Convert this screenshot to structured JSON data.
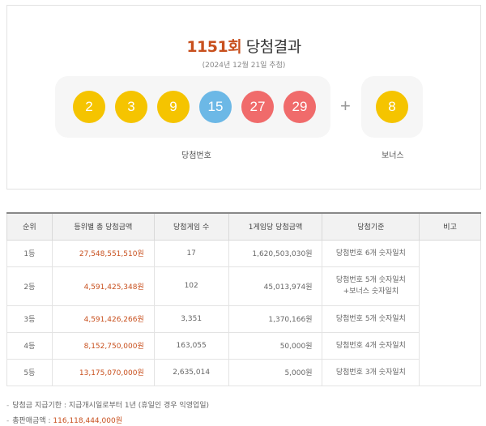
{
  "header": {
    "round": "1151회",
    "title_suffix": "당첨결과",
    "draw_date": "(2024년 12월 21일 추첨)"
  },
  "balls": [
    {
      "number": "2",
      "color": "#f5c400"
    },
    {
      "number": "3",
      "color": "#f5c400"
    },
    {
      "number": "9",
      "color": "#f5c400"
    },
    {
      "number": "15",
      "color": "#6cb8e6"
    },
    {
      "number": "27",
      "color": "#f06b6b"
    },
    {
      "number": "29",
      "color": "#f06b6b"
    }
  ],
  "bonus": {
    "number": "8",
    "color": "#f5c400"
  },
  "labels": {
    "winning_numbers": "당첨번호",
    "bonus": "보너스"
  },
  "table": {
    "headers": [
      "순위",
      "등위별 총 당첨금액",
      "당첨게임 수",
      "1게임당 당첨금액",
      "당첨기준",
      "비고"
    ],
    "rows": [
      {
        "rank": "1등",
        "total": "27,548,551,510원",
        "games": "17",
        "per_game": "1,620,503,030원",
        "criteria": [
          "당첨번호 6개 숫자일치"
        ]
      },
      {
        "rank": "2등",
        "total": "4,591,425,348원",
        "games": "102",
        "per_game": "45,013,974원",
        "criteria": [
          "당첨번호 5개 숫자일치",
          "+보너스 숫자일치"
        ]
      },
      {
        "rank": "3등",
        "total": "4,591,426,266원",
        "games": "3,351",
        "per_game": "1,370,166원",
        "criteria": [
          "당첨번호 5개 숫자일치"
        ]
      },
      {
        "rank": "4등",
        "total": "8,152,750,000원",
        "games": "163,055",
        "per_game": "50,000원",
        "criteria": [
          "당첨번호 4개 숫자일치"
        ]
      },
      {
        "rank": "5등",
        "total": "13,175,070,000원",
        "games": "2,635,014",
        "per_game": "5,000원",
        "criteria": [
          "당첨번호 3개 숫자일치"
        ]
      }
    ]
  },
  "notes": {
    "deadline": "당첨금 지급기한 : 지급개시일로부터 1년 (휴일인 경우 익영업일)",
    "sales_label": "총판매금액 : ",
    "sales_value": "116,118,444,000원"
  }
}
